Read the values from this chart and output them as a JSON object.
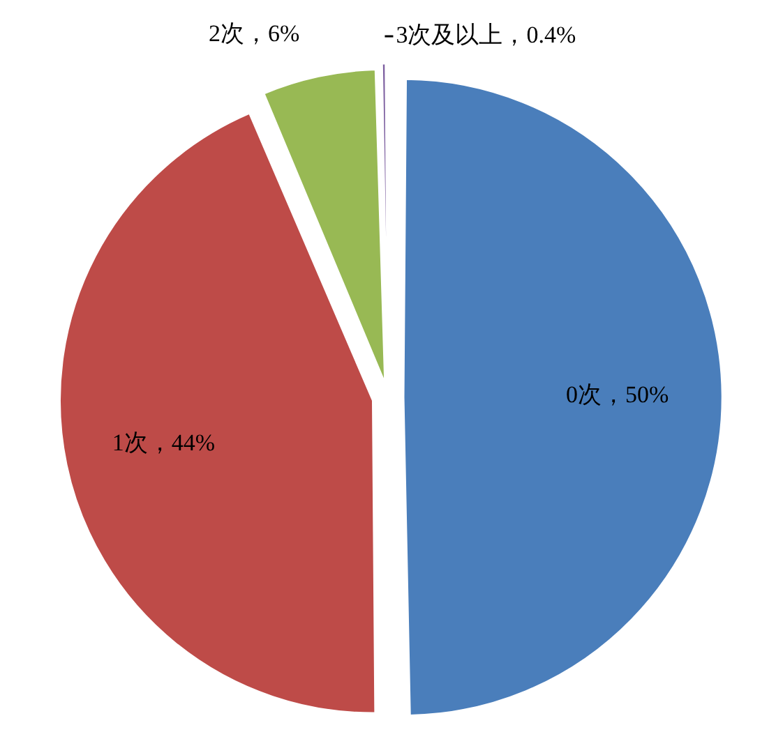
{
  "chart_data": {
    "type": "pie",
    "categories": [
      "0次",
      "1次",
      "2次",
      "3次及以上"
    ],
    "values": [
      50,
      44,
      6,
      0.4
    ],
    "colors": [
      "#4a7ebb",
      "#be4b48",
      "#98b954",
      "#7d5fa0"
    ],
    "value_labels": [
      "50%",
      "44%",
      "6%",
      "0.4%"
    ],
    "legend": false
  }
}
